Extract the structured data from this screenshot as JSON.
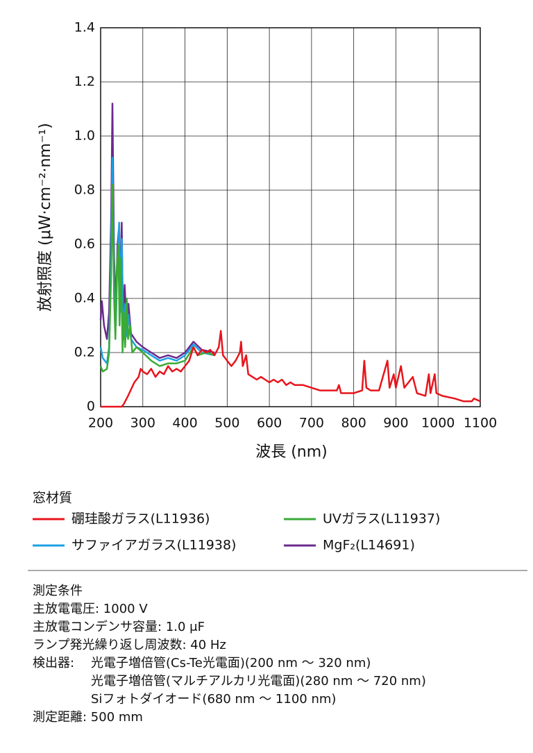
{
  "chart_data": {
    "type": "line",
    "y_label": "放射照度 (μW·cm⁻²·nm⁻¹)",
    "x_label": "波長 (nm)",
    "xlim": [
      200,
      1100
    ],
    "ylim": [
      0,
      1.4
    ],
    "xticks": [
      200,
      300,
      400,
      500,
      600,
      700,
      800,
      900,
      1000,
      1100
    ],
    "yticks": [
      0,
      0.2,
      0.4,
      0.6,
      0.8,
      {
        "value": 1,
        "label": "1.0"
      },
      1.2,
      1.4
    ],
    "grid": true,
    "legend_title": "窓材質",
    "series": [
      {
        "name": "硼珪酸ガラス(L11936)",
        "color": "#e8141c",
        "x": [
          200,
          250,
          255,
          265,
          280,
          290,
          295,
          300,
          310,
          320,
          330,
          340,
          350,
          360,
          370,
          380,
          390,
          400,
          410,
          420,
          430,
          440,
          450,
          460,
          470,
          480,
          485,
          490,
          500,
          510,
          520,
          530,
          533,
          537,
          545,
          550,
          560,
          570,
          580,
          590,
          600,
          610,
          620,
          630,
          640,
          650,
          660,
          680,
          700,
          720,
          740,
          760,
          765,
          770,
          800,
          820,
          825,
          830,
          840,
          860,
          880,
          885,
          895,
          900,
          912,
          920,
          940,
          950,
          970,
          978,
          982,
          992,
          996,
          1010,
          1040,
          1060,
          1080,
          1085,
          1100
        ],
        "values": [
          0,
          0,
          0.01,
          0.04,
          0.09,
          0.11,
          0.14,
          0.13,
          0.12,
          0.14,
          0.11,
          0.13,
          0.12,
          0.15,
          0.13,
          0.14,
          0.13,
          0.15,
          0.17,
          0.22,
          0.19,
          0.21,
          0.2,
          0.21,
          0.19,
          0.22,
          0.28,
          0.19,
          0.17,
          0.15,
          0.17,
          0.2,
          0.24,
          0.15,
          0.19,
          0.12,
          0.11,
          0.1,
          0.11,
          0.1,
          0.09,
          0.1,
          0.09,
          0.1,
          0.08,
          0.09,
          0.08,
          0.08,
          0.07,
          0.06,
          0.06,
          0.06,
          0.08,
          0.05,
          0.05,
          0.06,
          0.17,
          0.07,
          0.06,
          0.06,
          0.17,
          0.07,
          0.12,
          0.07,
          0.15,
          0.07,
          0.11,
          0.05,
          0.04,
          0.12,
          0.05,
          0.12,
          0.05,
          0.04,
          0.03,
          0.02,
          0.02,
          0.03,
          0.02
        ]
      },
      {
        "name": "UVガラス(L11937)",
        "color": "#3aaa35",
        "x": [
          200,
          205,
          215,
          220,
          225,
          228,
          232,
          235,
          238,
          242,
          245,
          248,
          252,
          255,
          258,
          262,
          265,
          270,
          275,
          285,
          300,
          320,
          340,
          360,
          380,
          400,
          420,
          430,
          450,
          470
        ],
        "values": [
          0.15,
          0.13,
          0.14,
          0.2,
          0.5,
          0.82,
          0.4,
          0.25,
          0.5,
          0.6,
          0.3,
          0.55,
          0.2,
          0.35,
          0.22,
          0.4,
          0.25,
          0.3,
          0.2,
          0.22,
          0.2,
          0.17,
          0.15,
          0.16,
          0.16,
          0.17,
          0.22,
          0.19,
          0.2,
          0.19
        ]
      },
      {
        "name": "サファイアガラス(L11938)",
        "color": "#1ca0e3",
        "x": [
          200,
          205,
          215,
          220,
          225,
          228,
          232,
          236,
          240,
          244,
          247,
          250,
          254,
          258,
          262,
          266,
          272,
          285,
          300,
          320,
          340,
          360,
          380,
          400,
          420,
          440,
          470
        ],
        "values": [
          0.22,
          0.18,
          0.16,
          0.22,
          0.6,
          0.92,
          0.45,
          0.3,
          0.55,
          0.68,
          0.35,
          0.62,
          0.25,
          0.38,
          0.26,
          0.34,
          0.25,
          0.22,
          0.21,
          0.19,
          0.17,
          0.18,
          0.17,
          0.19,
          0.23,
          0.2,
          0.19
        ]
      },
      {
        "name": "MgF₂(L14691)",
        "color": "#6a2a8e",
        "x": [
          200,
          203,
          208,
          215,
          220,
          225,
          228,
          232,
          236,
          240,
          243,
          246,
          250,
          253,
          257,
          262,
          266,
          272,
          285,
          300,
          320,
          340,
          360,
          380,
          400,
          420,
          440,
          470
        ],
        "values": [
          0.32,
          0.39,
          0.3,
          0.25,
          0.35,
          0.7,
          1.12,
          0.55,
          0.35,
          0.6,
          0.65,
          0.4,
          0.68,
          0.3,
          0.45,
          0.28,
          0.38,
          0.27,
          0.24,
          0.22,
          0.2,
          0.18,
          0.19,
          0.18,
          0.2,
          0.24,
          0.21,
          0.2
        ]
      }
    ]
  },
  "conditions": {
    "title": "測定条件",
    "lines": [
      "主放電電圧: 1000 V",
      "主放電コンデンサ容量: 1.0 μF",
      "ランプ発光繰り返し周波数: 40 Hz"
    ],
    "detector": {
      "label": "検出器:",
      "items": [
        "光電子増倍管(Cs-Te光電面)(200 nm 〜 320 nm)",
        "光電子増倍管(マルチアルカリ光電面)(280 nm 〜 720 nm)",
        "Siフォトダイオード(680 nm 〜 1100 nm)"
      ]
    },
    "distance": "測定距離: 500 mm"
  }
}
